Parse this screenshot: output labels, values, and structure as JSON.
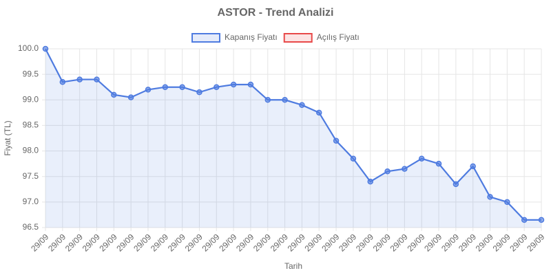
{
  "chart_data": {
    "type": "line",
    "title": "ASTOR - Trend Analizi",
    "xlabel": "Tarih",
    "ylabel": "Fiyat (TL)",
    "categories": [
      "29/09",
      "29/09",
      "29/09",
      "29/09",
      "29/09",
      "29/09",
      "29/09",
      "29/09",
      "29/09",
      "29/09",
      "29/09",
      "29/09",
      "29/09",
      "29/09",
      "29/09",
      "29/09",
      "29/09",
      "29/09",
      "29/09",
      "29/09",
      "29/09",
      "29/09",
      "29/09",
      "29/09",
      "29/09",
      "29/09",
      "29/09",
      "29/09",
      "29/09",
      "29/09"
    ],
    "series": [
      {
        "name": "Kapanış Fiyatı",
        "color": "#4e7be0",
        "fill": true,
        "values": [
          100.0,
          99.35,
          99.4,
          99.4,
          99.1,
          99.05,
          99.2,
          99.25,
          99.25,
          99.15,
          99.25,
          99.3,
          99.3,
          99.0,
          99.0,
          98.9,
          98.75,
          98.2,
          97.85,
          97.4,
          97.6,
          97.65,
          97.85,
          97.75,
          97.35,
          97.7,
          97.1,
          97.0,
          96.65,
          96.65
        ]
      },
      {
        "name": "Açılış Fiyatı",
        "color": "#e84848",
        "fill": false,
        "values": [
          null,
          null,
          null,
          null,
          null,
          null,
          null,
          null,
          null,
          null,
          null,
          null,
          null,
          null,
          null,
          null,
          null,
          null,
          null,
          null,
          null,
          null,
          null,
          null,
          null,
          null,
          null,
          null,
          null,
          null
        ]
      }
    ],
    "ylim": [
      96.5,
      100.0
    ],
    "yticks": [
      96.5,
      {
        "value": 97.0,
        "label": "97.0"
      },
      97.5,
      {
        "value": 98.0,
        "label": "98.0"
      },
      98.5,
      {
        "value": 99.0,
        "label": "99.0"
      },
      99.5,
      {
        "value": 100.0,
        "label": "100.0"
      }
    ],
    "grid": true,
    "legend": "top"
  }
}
